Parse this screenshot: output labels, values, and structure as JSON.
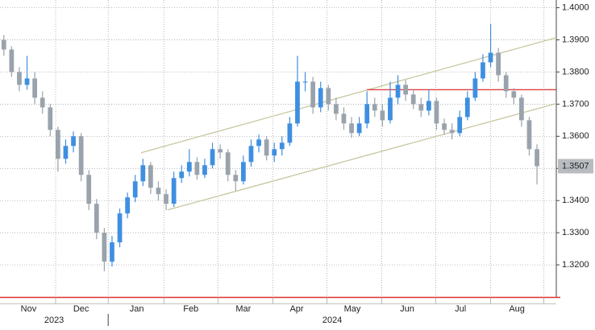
{
  "chart_data": {
    "type": "candlestick",
    "x": [
      0,
      1,
      2,
      3,
      4,
      5,
      6,
      7,
      8,
      9,
      10,
      11,
      12,
      13,
      14,
      15,
      16,
      17,
      18,
      19,
      20,
      21,
      22,
      23,
      24,
      25,
      26,
      27,
      28,
      29,
      30,
      31,
      32,
      33,
      34,
      35,
      36,
      37,
      38,
      39,
      40,
      41,
      42,
      43,
      44,
      45,
      46,
      47,
      48,
      49,
      50,
      51,
      52,
      53,
      54,
      55,
      56,
      57,
      58,
      59,
      60,
      61,
      62,
      63,
      64,
      65,
      66,
      67,
      68,
      69
    ],
    "open": [
      1.39,
      1.387,
      1.38,
      1.376,
      1.378,
      1.372,
      1.369,
      1.362,
      1.353,
      1.357,
      1.36,
      1.348,
      1.339,
      1.33,
      1.321,
      1.327,
      1.336,
      1.341,
      1.346,
      1.351,
      1.344,
      1.342,
      1.339,
      1.347,
      1.349,
      1.352,
      1.348,
      1.351,
      1.356,
      1.355,
      1.348,
      1.346,
      1.352,
      1.357,
      1.359,
      1.354,
      1.356,
      1.358,
      1.364,
      1.377,
      1.377,
      1.369,
      1.375,
      1.37,
      1.367,
      1.364,
      1.361,
      1.364,
      1.37,
      1.368,
      1.365,
      1.372,
      1.376,
      1.373,
      1.37,
      1.368,
      1.371,
      1.364,
      1.362,
      1.361,
      1.366,
      1.372,
      1.378,
      1.383,
      1.386,
      1.379,
      1.374,
      1.372,
      1.365,
      1.356
    ],
    "high": [
      1.3915,
      1.388,
      1.3815,
      1.385,
      1.38,
      1.374,
      1.37,
      1.363,
      1.359,
      1.3615,
      1.361,
      1.3495,
      1.3405,
      1.3315,
      1.329,
      1.3375,
      1.3425,
      1.348,
      1.353,
      1.352,
      1.346,
      1.3435,
      1.349,
      1.351,
      1.356,
      1.3535,
      1.353,
      1.358,
      1.3575,
      1.356,
      1.3495,
      1.354,
      1.359,
      1.3605,
      1.36,
      1.358,
      1.36,
      1.366,
      1.385,
      1.38,
      1.3785,
      1.377,
      1.376,
      1.372,
      1.369,
      1.366,
      1.366,
      1.374,
      1.372,
      1.37,
      1.377,
      1.379,
      1.3775,
      1.3745,
      1.372,
      1.3745,
      1.372,
      1.3655,
      1.364,
      1.368,
      1.374,
      1.38,
      1.3855,
      1.395,
      1.3875,
      1.38,
      1.375,
      1.373,
      1.366,
      1.3575
    ],
    "low": [
      1.385,
      1.3785,
      1.374,
      1.3745,
      1.37,
      1.367,
      1.36,
      1.349,
      1.3515,
      1.355,
      1.346,
      1.337,
      1.328,
      1.318,
      1.3195,
      1.3255,
      1.3345,
      1.3395,
      1.3445,
      1.342,
      1.34,
      1.337,
      1.338,
      1.3455,
      1.3475,
      1.3465,
      1.347,
      1.35,
      1.353,
      1.346,
      1.343,
      1.345,
      1.3505,
      1.355,
      1.3525,
      1.352,
      1.354,
      1.357,
      1.363,
      1.374,
      1.367,
      1.3675,
      1.368,
      1.365,
      1.362,
      1.3595,
      1.36,
      1.3625,
      1.366,
      1.363,
      1.364,
      1.37,
      1.371,
      1.3685,
      1.366,
      1.3665,
      1.362,
      1.3605,
      1.359,
      1.36,
      1.365,
      1.371,
      1.377,
      1.3815,
      1.377,
      1.372,
      1.37,
      1.363,
      1.354,
      1.345
    ],
    "close": [
      1.387,
      1.38,
      1.376,
      1.378,
      1.372,
      1.369,
      1.362,
      1.353,
      1.357,
      1.36,
      1.348,
      1.339,
      1.33,
      1.321,
      1.327,
      1.336,
      1.341,
      1.346,
      1.351,
      1.344,
      1.342,
      1.339,
      1.347,
      1.349,
      1.352,
      1.348,
      1.351,
      1.356,
      1.355,
      1.348,
      1.346,
      1.352,
      1.357,
      1.359,
      1.354,
      1.356,
      1.358,
      1.364,
      1.377,
      1.377,
      1.369,
      1.375,
      1.37,
      1.367,
      1.364,
      1.361,
      1.364,
      1.37,
      1.368,
      1.365,
      1.372,
      1.376,
      1.373,
      1.37,
      1.368,
      1.371,
      1.364,
      1.362,
      1.361,
      1.366,
      1.372,
      1.378,
      1.383,
      1.386,
      1.379,
      1.374,
      1.372,
      1.365,
      1.356,
      1.3507
    ],
    "up_color": "#3f8fe0",
    "down_color": "#9aa3ac",
    "xlim": [
      -0.5,
      71.5
    ],
    "ylim": [
      1.31,
      1.4024
    ],
    "yticks": [
      {
        "value": 1.32,
        "label": "1.3200"
      },
      {
        "value": 1.33,
        "label": "1.3300"
      },
      {
        "value": 1.34,
        "label": "1.3400"
      },
      {
        "value": 1.35,
        "label": "1.3500"
      },
      {
        "value": 1.36,
        "label": "1.3600"
      },
      {
        "value": 1.37,
        "label": "1.3700"
      },
      {
        "value": 1.38,
        "label": "1.3800"
      },
      {
        "value": 1.39,
        "label": "1.3900"
      },
      {
        "value": 1.4,
        "label": "1.4000"
      }
    ],
    "xticks": [
      {
        "value": 3.2,
        "label": "Nov"
      },
      {
        "value": 10,
        "label": "Dec"
      },
      {
        "value": 17.2,
        "label": "Jan"
      },
      {
        "value": 24.2,
        "label": "Feb"
      },
      {
        "value": 31,
        "label": "Mar"
      },
      {
        "value": 37.9,
        "label": "Apr"
      },
      {
        "value": 45.1,
        "label": "May"
      },
      {
        "value": 52.2,
        "label": "Jun"
      },
      {
        "value": 59.1,
        "label": "Jul"
      },
      {
        "value": 66.4,
        "label": "Aug"
      }
    ],
    "xgrid": [
      6.7,
      13.5,
      20.7,
      27.7,
      34.8,
      41.8,
      48.9,
      55.9,
      63,
      69.9
    ],
    "years": [
      {
        "value": 6.5,
        "label": "2023"
      },
      {
        "value": 42.5,
        "label": "2024"
      }
    ],
    "year_divider": 13.5,
    "grid": true,
    "trendlines": [
      {
        "color": "#c8c6a0",
        "x": [
          17.77,
          71.5
        ],
        "y": [
          1.3549,
          1.3907
        ]
      },
      {
        "color": "#c8c6a0",
        "x": [
          21.2,
          71.5
        ],
        "y": [
          1.3371,
          1.3702
        ]
      },
      {
        "color": "#e04040",
        "x": [
          47,
          71.5
        ],
        "y": [
          1.3745,
          1.3745
        ]
      }
    ],
    "last_price": {
      "value": 1.3507,
      "label": "1.3507"
    }
  }
}
